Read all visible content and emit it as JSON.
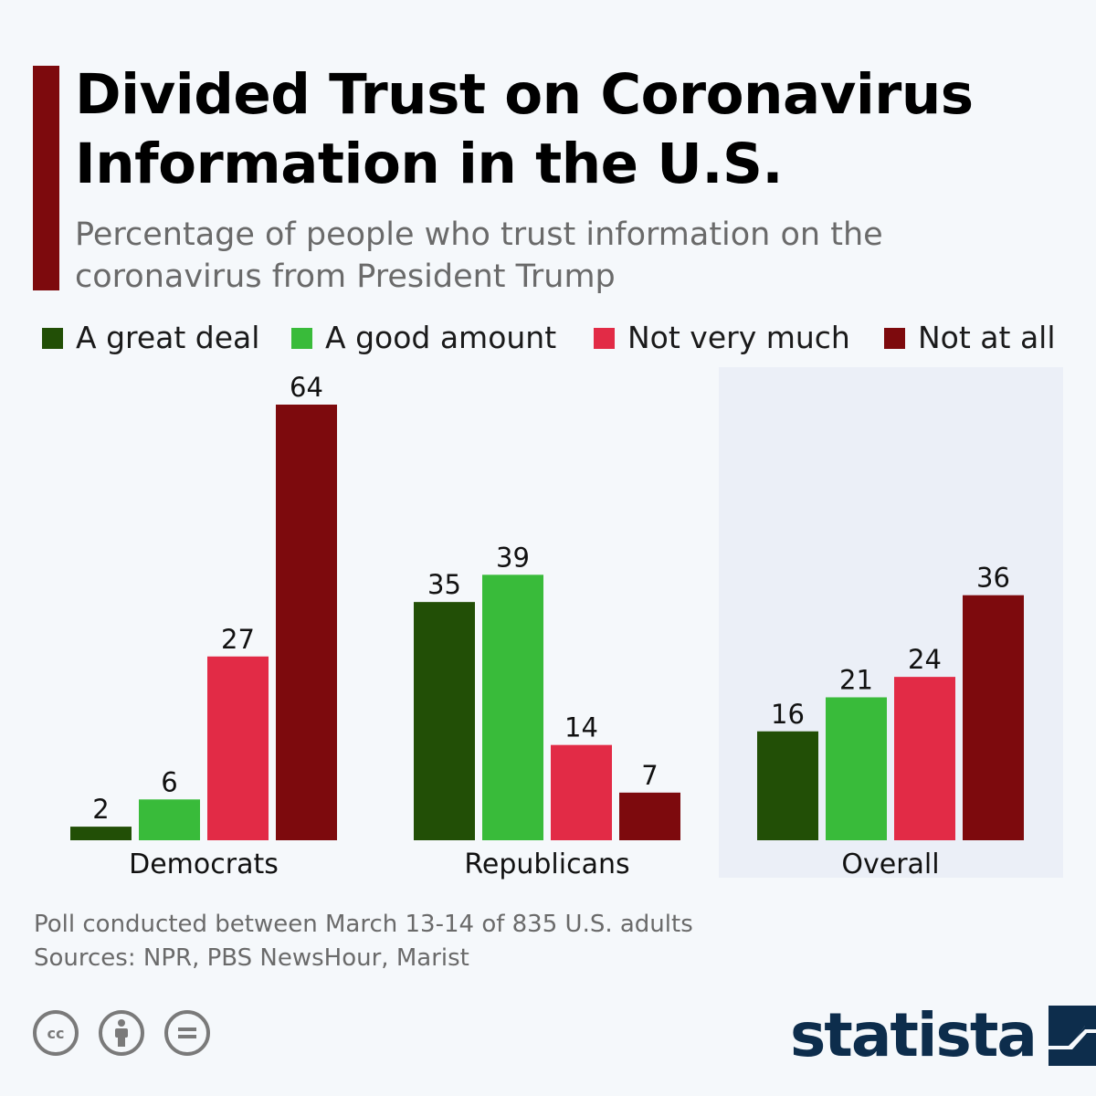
{
  "header": {
    "title": "Divided Trust on Coronavirus Information in the U.S.",
    "subtitle": "Percentage of people who trust information on the coronavirus from President Trump"
  },
  "footer": {
    "note": "Poll conducted between March 13-14 of 835 U.S. adults",
    "sources": "Sources: NPR, PBS NewsHour, Marist"
  },
  "branding": {
    "logo_text": "statista",
    "license_icons": [
      "cc-icon",
      "attribution-icon",
      "no-derivatives-icon"
    ]
  },
  "colors": {
    "accent": "#7d0a0d",
    "highlight_background": "#ebeff7",
    "logo": "#0d2d4c"
  },
  "chart_data": {
    "type": "bar",
    "categories": [
      "Democrats",
      "Republicans",
      "Overall"
    ],
    "series": [
      {
        "name": "A great deal",
        "color": "#224f06",
        "values": [
          2,
          35,
          16
        ]
      },
      {
        "name": "A good amount",
        "color": "#39bb3a",
        "values": [
          6,
          39,
          21
        ]
      },
      {
        "name": "Not very much",
        "color": "#e22b46",
        "values": [
          27,
          14,
          24
        ]
      },
      {
        "name": "Not at all",
        "color": "#7d0a0d",
        "values": [
          64,
          7,
          36
        ]
      }
    ],
    "ylim": [
      0,
      64
    ],
    "grid": false,
    "legend": "top",
    "highlighted_category": "Overall",
    "data_labels": true
  }
}
